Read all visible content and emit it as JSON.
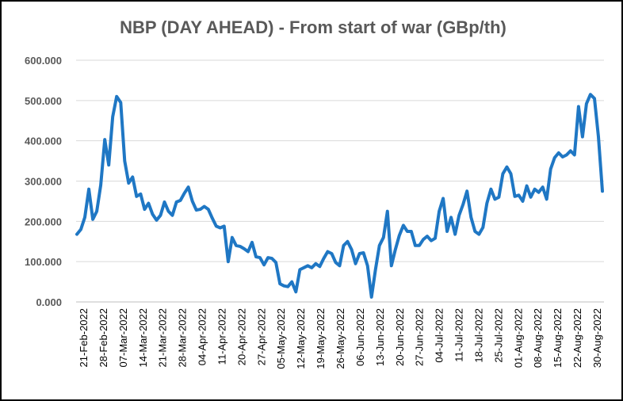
{
  "chart_data": {
    "type": "line",
    "title": "NBP (DAY AHEAD) - From start of war (GBp/th)",
    "ylim": [
      0,
      600
    ],
    "y_ticks": [
      "0.000",
      "100.000",
      "200.000",
      "300.000",
      "400.000",
      "500.000",
      "600.000"
    ],
    "x_ticks": [
      "21-Feb-2022",
      "28-Feb-2022",
      "07-Mar-2022",
      "14-Mar-2022",
      "21-Mar-2022",
      "28-Mar-2022",
      "04-Apr-2022",
      "11-Apr-2022",
      "20-Apr-2022",
      "27-Apr-2022",
      "05-May-2022",
      "12-May-2022",
      "19-May-2022",
      "26-May-2022",
      "06-Jun-2022",
      "13-Jun-2022",
      "20-Jun-2022",
      "27-Jun-2022",
      "04-Jul-2022",
      "11-Jul-2022",
      "18-Jul-2022",
      "25-Jul-2022",
      "01-Aug-2022",
      "08-Aug-2022",
      "15-Aug-2022",
      "22-Aug-2022",
      "30-Aug-2022"
    ],
    "grid": true,
    "line_color": "#1f77c4",
    "series": [
      {
        "values": [
          168,
          180,
          210,
          280,
          205,
          225,
          290,
          403,
          340,
          460,
          510,
          495,
          350,
          295,
          310,
          262,
          268,
          230,
          245,
          218,
          203,
          215,
          248,
          225,
          215,
          248,
          252,
          270,
          285,
          250,
          228,
          230,
          237,
          230,
          208,
          188,
          184,
          188,
          100,
          160,
          140,
          138,
          132,
          125,
          148,
          112,
          110,
          92,
          110,
          108,
          98,
          45,
          40,
          38,
          50,
          25,
          80,
          85,
          90,
          85,
          95,
          88,
          108,
          125,
          120,
          98,
          90,
          140,
          150,
          130,
          95,
          120,
          122,
          90,
          12,
          80,
          140,
          160,
          225,
          90,
          130,
          165,
          190,
          175,
          175,
          140,
          140,
          155,
          163,
          152,
          158,
          225,
          257,
          175,
          210,
          168,
          215,
          242,
          275,
          210,
          175,
          168,
          185,
          245,
          280,
          255,
          260,
          318,
          335,
          318,
          262,
          265,
          250,
          288,
          260,
          280,
          272,
          285,
          255,
          330,
          358,
          370,
          360,
          365,
          375,
          365,
          485,
          410,
          492,
          515,
          505,
          410,
          275
        ]
      }
    ]
  }
}
